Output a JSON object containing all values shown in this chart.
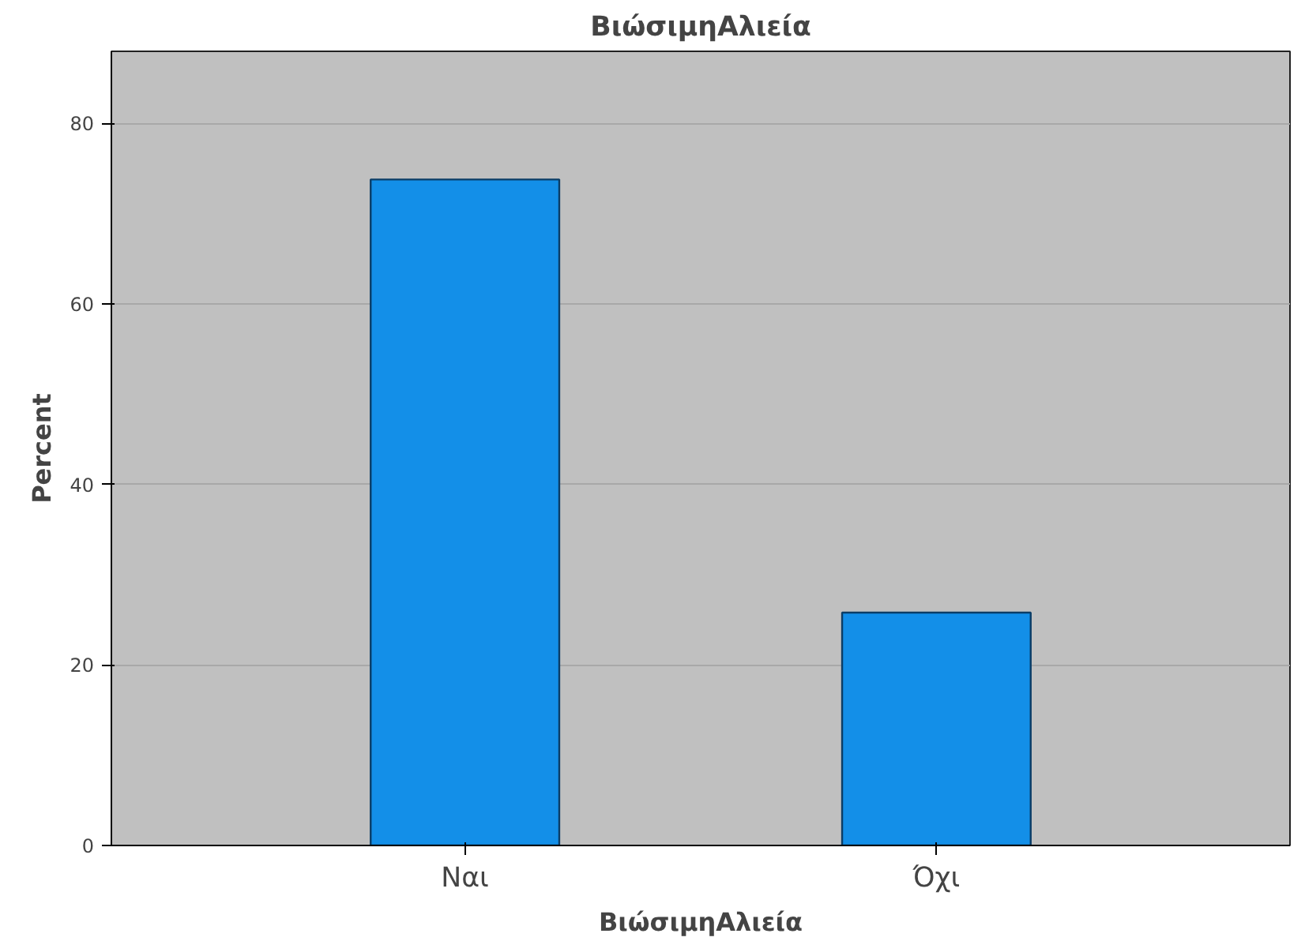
{
  "chart_data": {
    "type": "bar",
    "title": "ΒιώσιμηΑλιεία",
    "xlabel": "ΒιώσιμηΑλιεία",
    "ylabel": "Percent",
    "categories": [
      "Ναι",
      "Όχι"
    ],
    "values": [
      73.8,
      25.8
    ],
    "color": "#138fe8",
    "ylim": [
      0,
      88
    ],
    "yticks": [
      0,
      20,
      40,
      60,
      80
    ],
    "grid": "y"
  }
}
